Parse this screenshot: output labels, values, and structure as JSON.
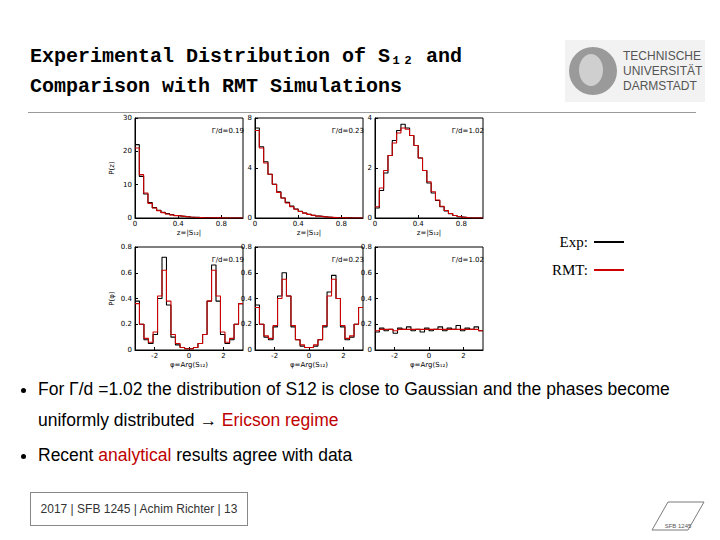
{
  "slide": {
    "title": [
      "Experimental Distribution of S₁₂ and",
      "Comparison with RMT Simulations"
    ],
    "logo": [
      "TECHNISCHE",
      "UNIVERSITÄT",
      "DARMSTADT"
    ],
    "bullets": [
      [
        {
          "text": "For Γ/d =1.02 the distribution of S12 is close to Gaussian and the phases become uniformly distributed → "
        },
        {
          "text": "Ericson regime",
          "color": "#c00000"
        }
      ],
      [
        {
          "text": "Recent "
        },
        {
          "text": "analytical",
          "color": "#c00000"
        },
        {
          "text": " results agree with data"
        }
      ]
    ],
    "footer": "2017 | SFB 1245 | Achim Richter | 13",
    "footer_logo": "SFB 1245"
  },
  "chart_data": [
    {
      "type": "histogram",
      "annotation": "Γ/d=0.19",
      "xlabel": "z=|S₁₂|",
      "ylabel": "P(z)",
      "bins": [
        0,
        0.04,
        0.08,
        0.12,
        0.16,
        0.2,
        0.24,
        0.28,
        0.32,
        0.36,
        0.4,
        0.44,
        0.48,
        0.52,
        0.56,
        0.6,
        0.64,
        0.68,
        0.72,
        0.76,
        0.8,
        0.84,
        0.88,
        0.92,
        0.96,
        1.0
      ],
      "series": [
        {
          "name": "Exp:",
          "color": "#000000",
          "values": [
            22,
            12.5,
            7.2,
            4.6,
            3.1,
            2.3,
            1.7,
            1.3,
            1.0,
            0.75,
            0.55,
            0.42,
            0.32,
            0.24,
            0.18,
            0.13,
            0.1,
            0.07,
            0.05,
            0.03,
            0.02,
            0.01,
            0,
            0,
            0
          ]
        },
        {
          "name": "RMT:",
          "color": "#cc0000",
          "values": [
            21,
            13,
            7.5,
            4.4,
            3.0,
            2.2,
            1.6,
            1.2,
            0.95,
            0.7,
            0.55,
            0.4,
            0.3,
            0.22,
            0.16,
            0.12,
            0.09,
            0.06,
            0.04,
            0.03,
            0.02,
            0.01,
            0,
            0,
            0
          ]
        }
      ],
      "xlim": [
        0,
        1
      ],
      "xticks": [
        0,
        0.4,
        0.8
      ],
      "ylim": [
        0,
        30
      ],
      "yticks": [
        0,
        10,
        20,
        30
      ],
      "grid": false
    },
    {
      "type": "histogram",
      "annotation": "Γ/d=0.23",
      "xlabel": "z=|S₁₂|",
      "bins": [
        0,
        0.04,
        0.08,
        0.12,
        0.16,
        0.2,
        0.24,
        0.28,
        0.32,
        0.36,
        0.4,
        0.44,
        0.48,
        0.52,
        0.56,
        0.6,
        0.64,
        0.68,
        0.72,
        0.76,
        0.8,
        0.84,
        0.88,
        0.92,
        0.96,
        1.0
      ],
      "series": [
        {
          "name": "Exp:",
          "color": "#000000",
          "values": [
            7.2,
            5.7,
            4.5,
            3.5,
            2.7,
            2.1,
            1.6,
            1.25,
            0.95,
            0.72,
            0.54,
            0.4,
            0.3,
            0.22,
            0.16,
            0.11,
            0.08,
            0.05,
            0.03,
            0.02,
            0.01,
            0.01,
            0,
            0,
            0
          ]
        },
        {
          "name": "RMT:",
          "color": "#cc0000",
          "values": [
            7.0,
            5.6,
            4.4,
            3.5,
            2.7,
            2.05,
            1.6,
            1.2,
            0.9,
            0.7,
            0.52,
            0.39,
            0.29,
            0.21,
            0.15,
            0.11,
            0.07,
            0.05,
            0.03,
            0.02,
            0.01,
            0,
            0,
            0,
            0
          ]
        }
      ],
      "xlim": [
        0,
        1
      ],
      "xticks": [
        0,
        0.4,
        0.8
      ],
      "ylim": [
        0,
        8
      ],
      "yticks": [
        0,
        4,
        8
      ],
      "grid": false
    },
    {
      "type": "histogram",
      "annotation": "Γ/d=1.02",
      "xlabel": "z=|S₁₂|",
      "bins": [
        0,
        0.04,
        0.08,
        0.12,
        0.16,
        0.2,
        0.24,
        0.28,
        0.32,
        0.36,
        0.4,
        0.44,
        0.48,
        0.52,
        0.56,
        0.6,
        0.64,
        0.68,
        0.72,
        0.76,
        0.8,
        0.84,
        0.88,
        0.92,
        0.96,
        1.0
      ],
      "series": [
        {
          "name": "Exp:",
          "color": "#000000",
          "values": [
            0.4,
            1.1,
            1.8,
            2.5,
            3.1,
            3.5,
            3.75,
            3.6,
            3.3,
            2.9,
            2.4,
            1.9,
            1.4,
            1.0,
            0.7,
            0.45,
            0.28,
            0.17,
            0.1,
            0.05,
            0.03,
            0.01,
            0,
            0,
            0
          ]
        },
        {
          "name": "RMT:",
          "color": "#cc0000",
          "values": [
            0.45,
            1.2,
            1.9,
            2.5,
            3.0,
            3.4,
            3.6,
            3.55,
            3.3,
            2.9,
            2.4,
            1.9,
            1.45,
            1.05,
            0.72,
            0.47,
            0.3,
            0.18,
            0.1,
            0.06,
            0.03,
            0.01,
            0,
            0,
            0
          ]
        }
      ],
      "xlim": [
        0,
        1
      ],
      "xticks": [
        0,
        0.4,
        0.8
      ],
      "ylim": [
        0,
        4
      ],
      "yticks": [
        0,
        2,
        4
      ],
      "grid": false
    },
    {
      "type": "histogram",
      "annotation": "Γ/d=0.19",
      "xlabel": "φ=Arg(S₁₂)",
      "ylabel": "P(φ)",
      "bins": [
        -3.14,
        -2.88,
        -2.62,
        -2.36,
        -2.09,
        -1.83,
        -1.57,
        -1.31,
        -1.05,
        -0.79,
        -0.52,
        -0.26,
        0,
        0.26,
        0.52,
        0.79,
        1.05,
        1.31,
        1.57,
        1.83,
        2.09,
        2.36,
        2.62,
        2.88,
        3.14
      ],
      "series": [
        {
          "name": "Exp:",
          "color": "#000000",
          "values": [
            0.38,
            0.2,
            0.08,
            0.05,
            0.12,
            0.4,
            0.72,
            0.35,
            0.1,
            0.04,
            0.02,
            0.01,
            0.01,
            0.02,
            0.05,
            0.12,
            0.38,
            0.66,
            0.38,
            0.12,
            0.05,
            0.08,
            0.2,
            0.36
          ]
        },
        {
          "name": "RMT:",
          "color": "#cc0000",
          "values": [
            0.36,
            0.2,
            0.09,
            0.06,
            0.14,
            0.42,
            0.62,
            0.38,
            0.12,
            0.05,
            0.02,
            0.01,
            0.01,
            0.02,
            0.05,
            0.12,
            0.38,
            0.62,
            0.42,
            0.14,
            0.06,
            0.09,
            0.2,
            0.36
          ]
        }
      ],
      "xlim": [
        -3.14,
        3.14
      ],
      "xticks": [
        -2,
        0,
        2
      ],
      "ylim": [
        0,
        0.8
      ],
      "yticks": [
        0,
        0.2,
        0.4,
        0.6,
        0.8
      ],
      "grid": false
    },
    {
      "type": "histogram",
      "annotation": "Γ/d=0.23",
      "xlabel": "φ=Arg(S₁₂)",
      "bins": [
        -3.14,
        -2.88,
        -2.62,
        -2.36,
        -2.09,
        -1.83,
        -1.57,
        -1.31,
        -1.05,
        -0.79,
        -0.52,
        -0.26,
        0,
        0.26,
        0.52,
        0.79,
        1.05,
        1.31,
        1.57,
        1.83,
        2.09,
        2.36,
        2.62,
        2.88,
        3.14
      ],
      "series": [
        {
          "name": "Exp:",
          "color": "#000000",
          "values": [
            0.35,
            0.2,
            0.1,
            0.08,
            0.18,
            0.42,
            0.6,
            0.42,
            0.18,
            0.08,
            0.03,
            0.02,
            0.02,
            0.03,
            0.08,
            0.18,
            0.45,
            0.58,
            0.4,
            0.18,
            0.08,
            0.1,
            0.2,
            0.33
          ]
        },
        {
          "name": "RMT:",
          "color": "#cc0000",
          "values": [
            0.33,
            0.2,
            0.11,
            0.09,
            0.19,
            0.4,
            0.55,
            0.42,
            0.19,
            0.08,
            0.04,
            0.02,
            0.02,
            0.04,
            0.08,
            0.19,
            0.42,
            0.55,
            0.4,
            0.19,
            0.09,
            0.11,
            0.2,
            0.33
          ]
        }
      ],
      "xlim": [
        -3.14,
        3.14
      ],
      "xticks": [
        -2,
        0,
        2
      ],
      "ylim": [
        0,
        0.8
      ],
      "yticks": [
        0,
        0.2,
        0.4,
        0.6,
        0.8
      ],
      "grid": false
    },
    {
      "type": "histogram",
      "annotation": "Γ/d=1.02",
      "xlabel": "φ=Arg(S₁₂)",
      "bins": [
        -3.14,
        -2.88,
        -2.62,
        -2.36,
        -2.09,
        -1.83,
        -1.57,
        -1.31,
        -1.05,
        -0.79,
        -0.52,
        -0.26,
        0,
        0.26,
        0.52,
        0.79,
        1.05,
        1.31,
        1.57,
        1.83,
        2.09,
        2.36,
        2.62,
        2.88,
        3.14
      ],
      "series": [
        {
          "name": "Exp:",
          "color": "#000000",
          "values": [
            0.14,
            0.17,
            0.15,
            0.16,
            0.13,
            0.17,
            0.16,
            0.18,
            0.15,
            0.16,
            0.14,
            0.17,
            0.15,
            0.16,
            0.18,
            0.15,
            0.17,
            0.16,
            0.19,
            0.15,
            0.17,
            0.16,
            0.18,
            0.15
          ]
        },
        {
          "name": "RMT:",
          "color": "#cc0000",
          "values": [
            0.15,
            0.16,
            0.16,
            0.16,
            0.15,
            0.16,
            0.16,
            0.16,
            0.16,
            0.16,
            0.16,
            0.16,
            0.16,
            0.16,
            0.16,
            0.16,
            0.16,
            0.16,
            0.16,
            0.16,
            0.16,
            0.16,
            0.16,
            0.15
          ]
        }
      ],
      "xlim": [
        -3.14,
        3.14
      ],
      "xticks": [
        -2,
        0,
        2
      ],
      "ylim": [
        0,
        0.8
      ],
      "yticks": [
        0,
        0.2,
        0.4,
        0.6,
        0.8
      ],
      "grid": false
    }
  ]
}
